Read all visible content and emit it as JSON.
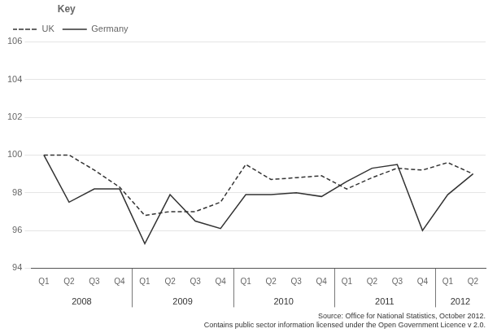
{
  "chart_data": {
    "type": "line",
    "categories": [
      "Q1",
      "Q2",
      "Q3",
      "Q4",
      "Q1",
      "Q2",
      "Q3",
      "Q4",
      "Q1",
      "Q2",
      "Q3",
      "Q4",
      "Q1",
      "Q2",
      "Q3",
      "Q4",
      "Q1",
      "Q2"
    ],
    "series": [
      {
        "name": "UK",
        "color": "#333333",
        "line_style": "dashed",
        "values": [
          100,
          100,
          99.2,
          98.3,
          96.8,
          97.0,
          97.0,
          97.5,
          99.5,
          98.7,
          98.8,
          98.9,
          98.2,
          98.8,
          99.3,
          99.2,
          99.6,
          99.0
        ]
      },
      {
        "name": "Germany",
        "color": "#333333",
        "line_style": "solid",
        "values": [
          100,
          97.5,
          98.2,
          98.2,
          95.3,
          97.9,
          96.5,
          96.1,
          97.9,
          97.9,
          98.0,
          97.8,
          98.6,
          99.3,
          99.5,
          96.0,
          97.9,
          99.0
        ]
      }
    ],
    "ylim": [
      94,
      106
    ],
    "yticks": [
      94,
      96,
      98,
      100,
      102,
      104,
      106
    ],
    "grid": true,
    "legend": "upper left",
    "legend_title": "Key",
    "annotations": [
      {
        "text": "2008",
        "x": 1.5
      },
      {
        "text": "2009",
        "x": 5.5
      },
      {
        "text": "2010",
        "x": 9.5
      },
      {
        "text": "2011",
        "x": 13.5
      },
      {
        "text": "2012",
        "x": 16.5
      }
    ],
    "separators": [
      3.5,
      7.5,
      11.5,
      15.5
    ],
    "source": "Source: Office for National Statistics, October 2012.\nContains public sector information licensed under the Open Government Licence v 2.0."
  }
}
